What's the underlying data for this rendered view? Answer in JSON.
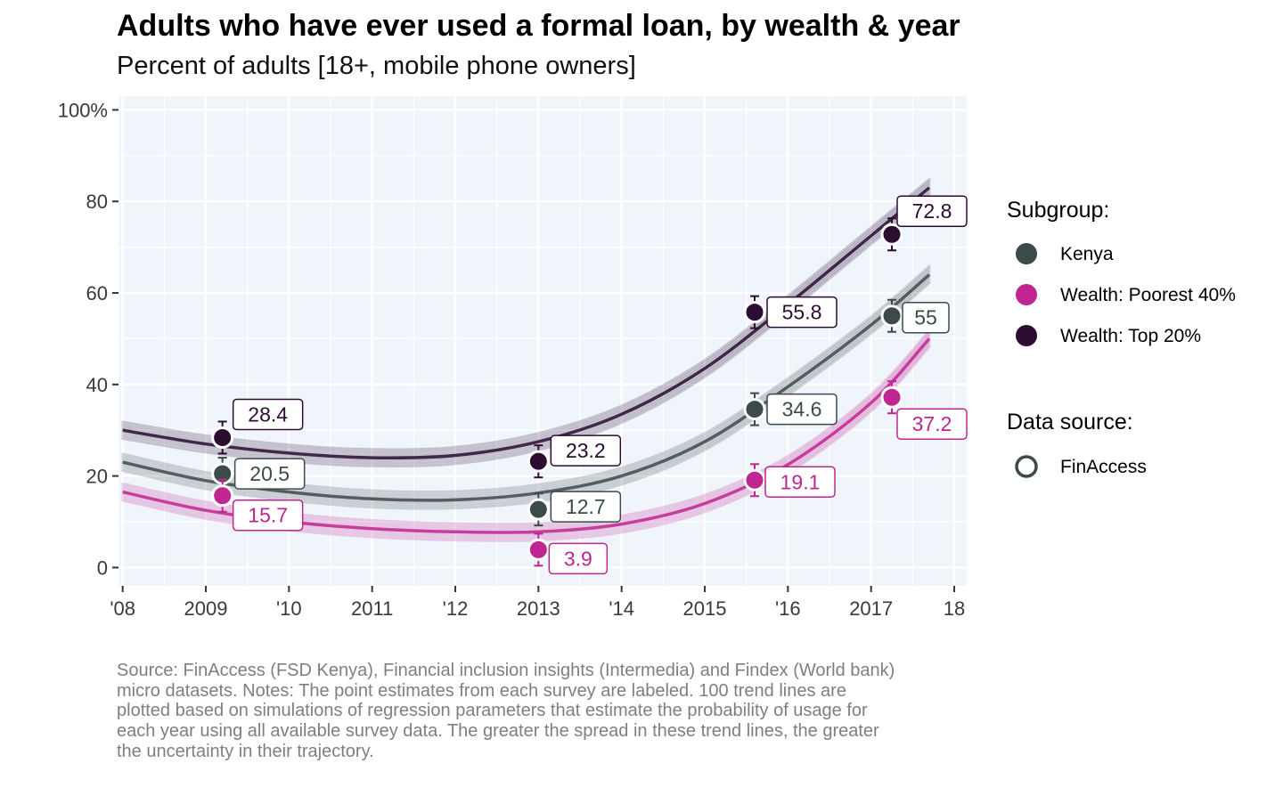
{
  "title": "Adults who have ever used a formal loan, by wealth & year",
  "subtitle": "Percent of adults [18+, mobile phone owners]",
  "caption": "Source: FinAccess (FSD Kenya), Financial inclusion insights (Intermedia) and Findex (World bank) micro datasets. Notes: The point estimates from each survey are labeled. 100 trend lines are plotted based on simulations of regression parameters that estimate the probability of usage for each year using all available survey data. The greater the spread in these trend lines, the greater the uncertainty in their trajectory.",
  "chart_data": {
    "type": "scatter",
    "xlim": [
      2007.95,
      2018.15
    ],
    "ylim": [
      -4,
      103
    ],
    "x_ticks": [
      {
        "value": 2008,
        "label": "'08"
      },
      {
        "value": 2009,
        "label": "2009"
      },
      {
        "value": 2010,
        "label": "'10"
      },
      {
        "value": 2011,
        "label": "2011"
      },
      {
        "value": 2012,
        "label": "'12"
      },
      {
        "value": 2013,
        "label": "2013"
      },
      {
        "value": 2014,
        "label": "'14"
      },
      {
        "value": 2015,
        "label": "2015"
      },
      {
        "value": 2016,
        "label": "'16"
      },
      {
        "value": 2017,
        "label": "2017"
      },
      {
        "value": 2018,
        "label": "18"
      }
    ],
    "y_ticks": [
      {
        "value": 0,
        "label": "0"
      },
      {
        "value": 20,
        "label": "20"
      },
      {
        "value": 40,
        "label": "40"
      },
      {
        "value": 60,
        "label": "60"
      },
      {
        "value": 80,
        "label": "80"
      },
      {
        "value": 100,
        "label": "100%"
      }
    ],
    "grid": true,
    "legend_position": "right",
    "legend": {
      "subgroup_title": "Subgroup:",
      "source_title": "Data source:",
      "source_items": [
        {
          "name": "FinAccess"
        }
      ]
    },
    "series": [
      {
        "name": "Kenya",
        "color": "#3d4a4a",
        "points": [
          {
            "x": 2009.2,
            "y": 20.5,
            "label": "20.5"
          },
          {
            "x": 2013.0,
            "y": 12.7,
            "label": "12.7"
          },
          {
            "x": 2015.6,
            "y": 34.6,
            "label": "34.6"
          },
          {
            "x": 2017.25,
            "y": 55.0,
            "label": "55"
          }
        ],
        "trend": [
          [
            2008,
            23.0
          ],
          [
            2009,
            19.0
          ],
          [
            2010,
            16.5
          ],
          [
            2011,
            15.0
          ],
          [
            2012,
            14.8
          ],
          [
            2013,
            16.3
          ],
          [
            2014,
            20.0
          ],
          [
            2015,
            27.5
          ],
          [
            2016,
            39.5
          ],
          [
            2017,
            53.0
          ],
          [
            2017.7,
            64.0
          ]
        ]
      },
      {
        "name": "Wealth: Poorest 40%",
        "color": "#c0268f",
        "points": [
          {
            "x": 2009.2,
            "y": 15.7,
            "label": "15.7"
          },
          {
            "x": 2013.0,
            "y": 3.9,
            "label": "3.9"
          },
          {
            "x": 2015.6,
            "y": 19.1,
            "label": "19.1"
          },
          {
            "x": 2017.25,
            "y": 37.2,
            "label": "37.2"
          }
        ],
        "trend": [
          [
            2008,
            16.5
          ],
          [
            2009,
            12.5
          ],
          [
            2010,
            10.0
          ],
          [
            2011,
            8.5
          ],
          [
            2012,
            7.8
          ],
          [
            2013,
            7.8
          ],
          [
            2014,
            9.5
          ],
          [
            2015,
            14.0
          ],
          [
            2016,
            22.5
          ],
          [
            2017,
            36.0
          ],
          [
            2017.7,
            50.0
          ]
        ]
      },
      {
        "name": "Wealth: Top 20%",
        "color": "#2a0d30",
        "points": [
          {
            "x": 2009.2,
            "y": 28.4,
            "label": "28.4"
          },
          {
            "x": 2013.0,
            "y": 23.2,
            "label": "23.2"
          },
          {
            "x": 2015.6,
            "y": 55.8,
            "label": "55.8"
          },
          {
            "x": 2017.25,
            "y": 72.8,
            "label": "72.8"
          }
        ],
        "trend": [
          [
            2008,
            30.0
          ],
          [
            2009,
            27.0
          ],
          [
            2010,
            25.0
          ],
          [
            2011,
            24.0
          ],
          [
            2012,
            24.5
          ],
          [
            2013,
            27.5
          ],
          [
            2014,
            33.5
          ],
          [
            2015,
            43.5
          ],
          [
            2016,
            57.5
          ],
          [
            2017,
            72.5
          ],
          [
            2017.7,
            83.0
          ]
        ]
      }
    ]
  }
}
